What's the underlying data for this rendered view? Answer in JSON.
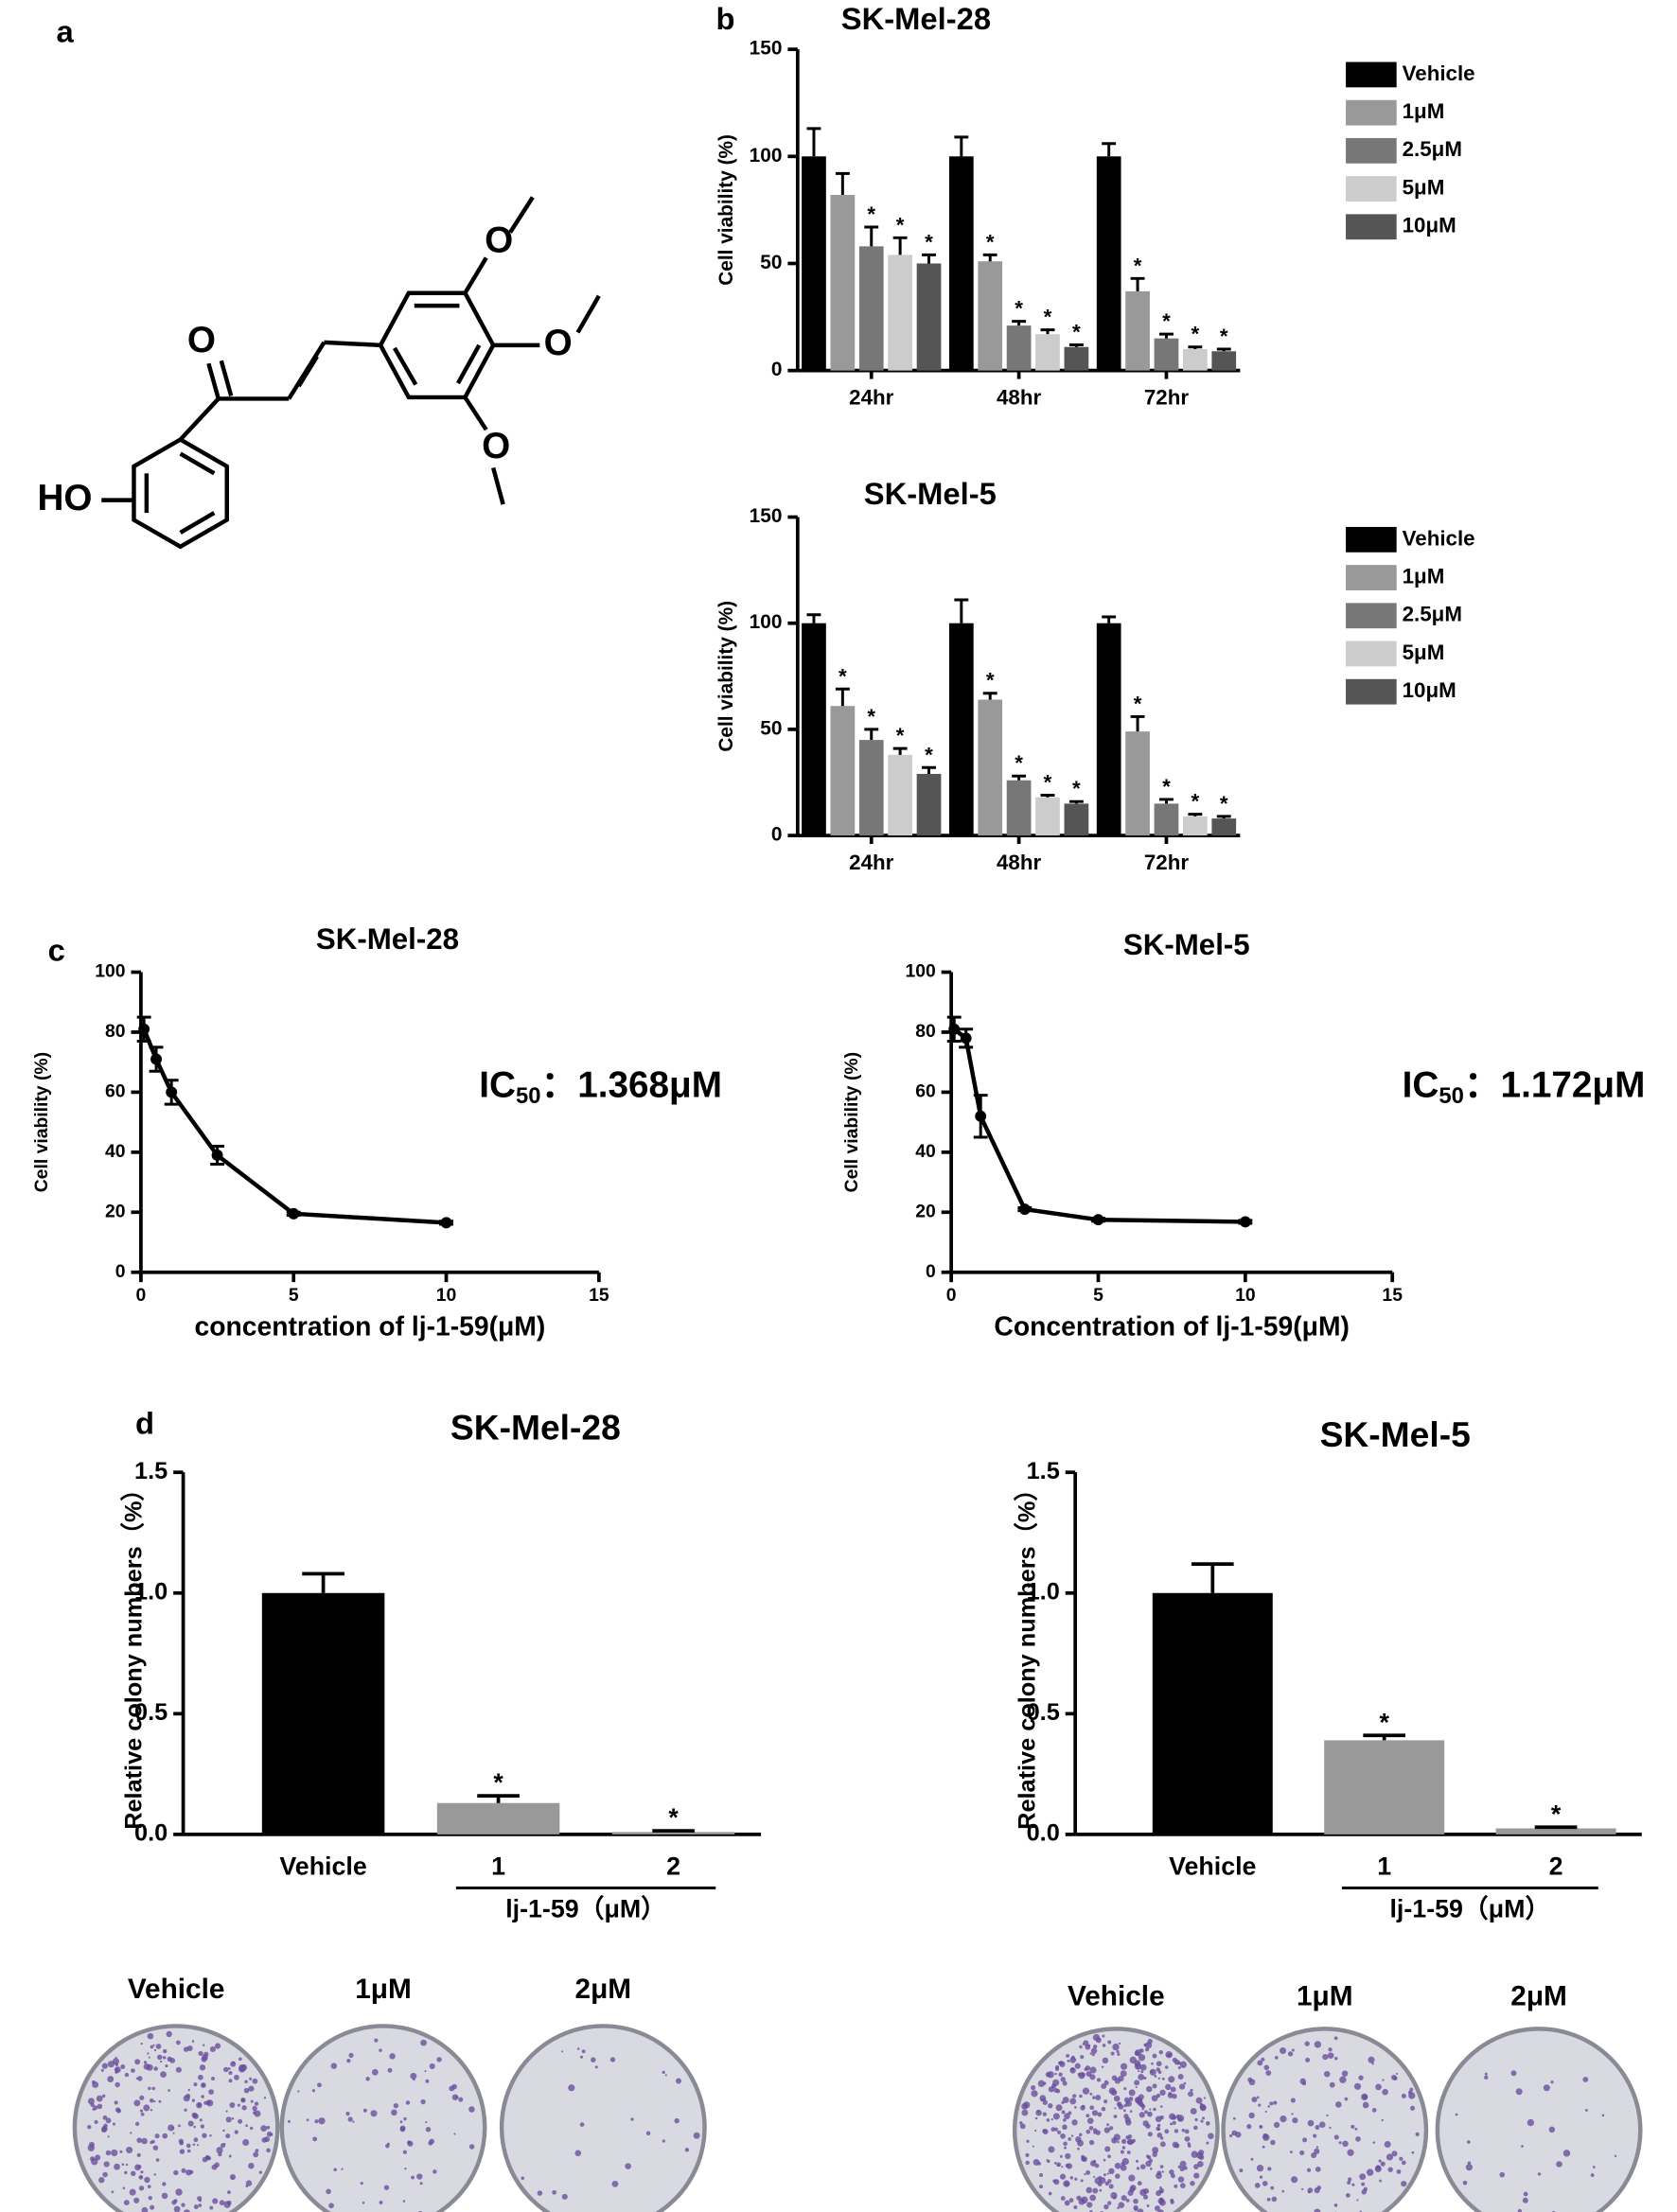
{
  "panels": [
    "a",
    "b",
    "c",
    "d"
  ],
  "structure": {
    "labels": [
      "O",
      "O",
      "O",
      "O",
      "HO"
    ]
  },
  "colony_images": [
    {
      "labels": [
        "Vehicle",
        "1μM",
        "2μM"
      ]
    },
    {
      "labels": [
        "Vehicle",
        "1μM",
        "2μM"
      ]
    }
  ],
  "chart_data": [
    {
      "type": "grouped_bar",
      "title": "SK-Mel-28",
      "y_label": "Cell viability (%)",
      "categories": [
        "24hr",
        "48hr",
        "72hr"
      ],
      "series": [
        {
          "name": "Vehicle",
          "color": "#000000",
          "values": [
            100,
            100,
            100
          ],
          "errors": [
            13,
            9,
            6
          ],
          "significance": [
            null,
            null,
            null
          ]
        },
        {
          "name": "1μM",
          "color": "#999999",
          "values": [
            82,
            51,
            37
          ],
          "errors": [
            10,
            3,
            6
          ],
          "significance": [
            null,
            "*",
            "*"
          ]
        },
        {
          "name": "2.5μM",
          "color": "#777777",
          "values": [
            58,
            21,
            15
          ],
          "errors": [
            9,
            2,
            2
          ],
          "significance": [
            "*",
            "*",
            "*"
          ]
        },
        {
          "name": "5μM",
          "color": "#cccccc",
          "values": [
            54,
            17,
            10
          ],
          "errors": [
            8,
            2,
            1
          ],
          "significance": [
            "*",
            "*",
            "*"
          ]
        },
        {
          "name": "10μM",
          "color": "#555555",
          "values": [
            50,
            11,
            9
          ],
          "errors": [
            4,
            1,
            1
          ],
          "significance": [
            "*",
            "*",
            "*"
          ]
        }
      ],
      "ylim": [
        0,
        150
      ],
      "yticks": [
        0,
        50,
        100,
        150
      ]
    },
    {
      "type": "grouped_bar",
      "title": "SK-Mel-5",
      "y_label": "Cell viability (%)",
      "categories": [
        "24hr",
        "48hr",
        "72hr"
      ],
      "series": [
        {
          "name": "Vehicle",
          "color": "#000000",
          "values": [
            100,
            100,
            100
          ],
          "errors": [
            4,
            11,
            3
          ],
          "significance": [
            null,
            null,
            null
          ]
        },
        {
          "name": "1μM",
          "color": "#999999",
          "values": [
            61,
            64,
            49
          ],
          "errors": [
            8,
            3,
            7
          ],
          "significance": [
            "*",
            "*",
            "*"
          ]
        },
        {
          "name": "2.5μM",
          "color": "#777777",
          "values": [
            45,
            26,
            15
          ],
          "errors": [
            5,
            2,
            2
          ],
          "significance": [
            "*",
            "*",
            "*"
          ]
        },
        {
          "name": "5μM",
          "color": "#cccccc",
          "values": [
            38,
            18,
            9
          ],
          "errors": [
            3,
            1,
            1
          ],
          "significance": [
            "*",
            "*",
            "*"
          ]
        },
        {
          "name": "10μM",
          "color": "#555555",
          "values": [
            29,
            15,
            8
          ],
          "errors": [
            3,
            1,
            1
          ],
          "significance": [
            "*",
            "*",
            "*"
          ]
        }
      ],
      "ylim": [
        0,
        150
      ],
      "yticks": [
        0,
        50,
        100,
        150
      ]
    },
    {
      "type": "line",
      "title": "SK-Mel-28",
      "x_label": "concentration of lj-1-59(μM)",
      "y_label": "Cell viability (%)",
      "annotation": {
        "prefix": "IC",
        "subscript": "50",
        "text": "：1.368μM"
      },
      "x": [
        0.1,
        0.5,
        1,
        2.5,
        5,
        10
      ],
      "values": [
        81,
        71,
        60,
        39,
        19.5,
        16.5
      ],
      "errors": [
        4,
        4,
        4,
        3,
        0.5,
        0.5
      ],
      "color": "#000000",
      "xlim": [
        0,
        15
      ],
      "xticks": [
        0,
        5,
        10,
        15
      ],
      "ylim": [
        0,
        100
      ],
      "yticks": [
        0,
        20,
        40,
        60,
        80,
        100
      ]
    },
    {
      "type": "line",
      "title": "SK-Mel-5",
      "x_label": "Concentration of lj-1-59(μM)",
      "y_label": "Cell viability (%)",
      "annotation": {
        "prefix": "IC",
        "subscript": "50",
        "text": "：1.172μM"
      },
      "x": [
        0.1,
        0.5,
        1,
        2.5,
        5,
        10
      ],
      "values": [
        81,
        78,
        52,
        21,
        17.5,
        16.8
      ],
      "errors": [
        4,
        3,
        7,
        0.5,
        0.5,
        0.5
      ],
      "color": "#000000",
      "xlim": [
        0,
        15
      ],
      "xticks": [
        0,
        5,
        10,
        15
      ],
      "ylim": [
        0,
        100
      ],
      "yticks": [
        0,
        20,
        40,
        60,
        80,
        100
      ]
    },
    {
      "type": "bar",
      "title": "SK-Mel-28",
      "y_label": "Relative colony numbers（%）",
      "group_label": "lj-1-59（μM）",
      "categories": [
        "Vehicle",
        "1",
        "2"
      ],
      "values": [
        1.0,
        0.13,
        0.01
      ],
      "errors": [
        0.08,
        0.03,
        0.005
      ],
      "colors": [
        "#000000",
        "#999999",
        "#999999"
      ],
      "significance": [
        null,
        "*",
        "*"
      ],
      "ylim": [
        0,
        1.5
      ],
      "yticks": [
        {
          "value": 0,
          "label": "0.0"
        },
        {
          "value": 0.5,
          "label": "0.5"
        },
        {
          "value": 1,
          "label": "1.0"
        },
        {
          "value": 1.5,
          "label": "1.5"
        }
      ]
    },
    {
      "type": "bar",
      "title": "SK-Mel-5",
      "y_label": "Relative colony numbers（%）",
      "group_label": "lj-1-59（μM）",
      "categories": [
        "Vehicle",
        "1",
        "2"
      ],
      "values": [
        1.0,
        0.39,
        0.025
      ],
      "errors": [
        0.12,
        0.02,
        0.005
      ],
      "colors": [
        "#000000",
        "#999999",
        "#999999"
      ],
      "significance": [
        null,
        "*",
        "*"
      ],
      "ylim": [
        0,
        1.5
      ],
      "yticks": [
        {
          "value": 0,
          "label": "0.0"
        },
        {
          "value": 0.5,
          "label": "0.5"
        },
        {
          "value": 1,
          "label": "1.0"
        },
        {
          "value": 1.5,
          "label": "1.5"
        }
      ]
    }
  ]
}
